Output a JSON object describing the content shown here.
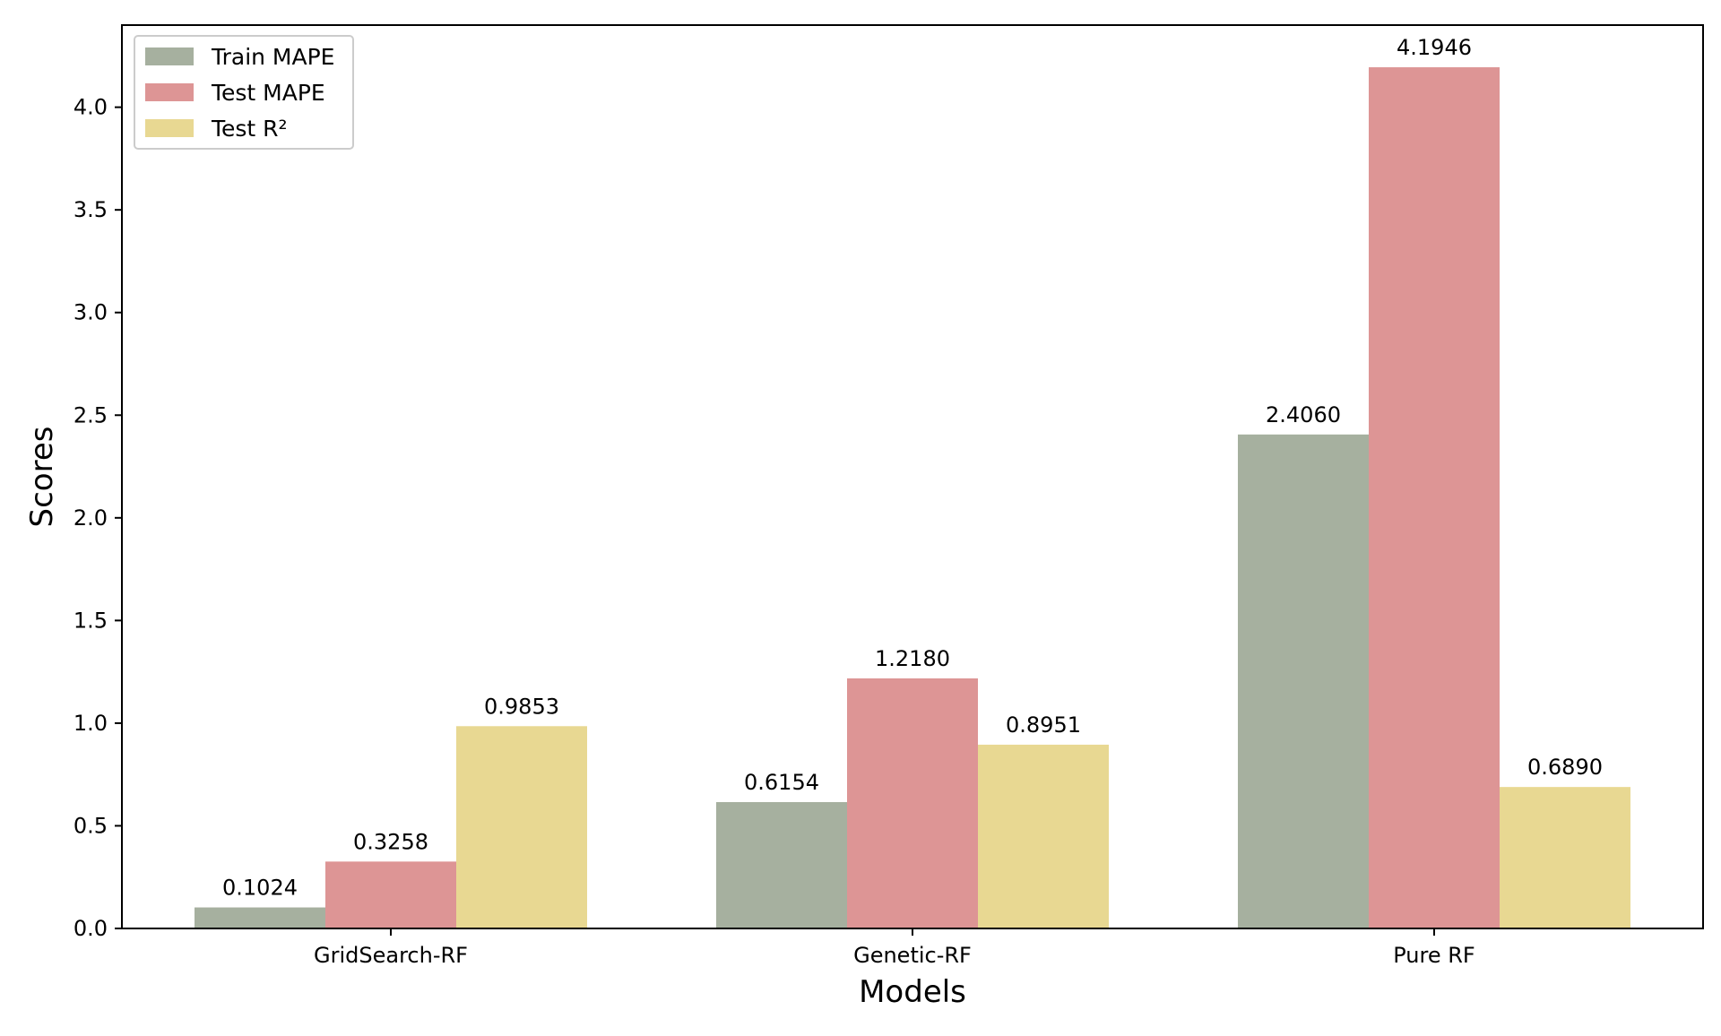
{
  "chart_data": {
    "type": "bar",
    "xlabel": "Models",
    "ylabel": "Scores",
    "categories": [
      "GridSearch-RF",
      "Genetic-RF",
      "Pure RF"
    ],
    "series": [
      {
        "name": "Train MAPE",
        "color": "#a6b09f",
        "values": [
          0.1024,
          0.6154,
          2.406
        ],
        "labels": [
          "0.1024",
          "0.6154",
          "2.4060"
        ]
      },
      {
        "name": "Test MAPE",
        "color": "#dd9595",
        "values": [
          0.3258,
          1.218,
          4.1946
        ],
        "labels": [
          "0.3258",
          "1.2180",
          "4.1946"
        ]
      },
      {
        "name": "Test R²",
        "color": "#e8d892",
        "values": [
          0.9853,
          0.8951,
          0.689
        ],
        "labels": [
          "0.9853",
          "0.8951",
          "0.6890"
        ]
      }
    ],
    "ylim": [
      0,
      4.4
    ],
    "yticks": [
      0.0,
      0.5,
      1.0,
      1.5,
      2.0,
      2.5,
      3.0,
      3.5,
      4.0
    ],
    "ytick_labels": [
      "0.0",
      "0.5",
      "1.0",
      "1.5",
      "2.0",
      "2.5",
      "3.0",
      "3.5",
      "4.0"
    ],
    "grid": false,
    "legend_position": "top-left"
  }
}
